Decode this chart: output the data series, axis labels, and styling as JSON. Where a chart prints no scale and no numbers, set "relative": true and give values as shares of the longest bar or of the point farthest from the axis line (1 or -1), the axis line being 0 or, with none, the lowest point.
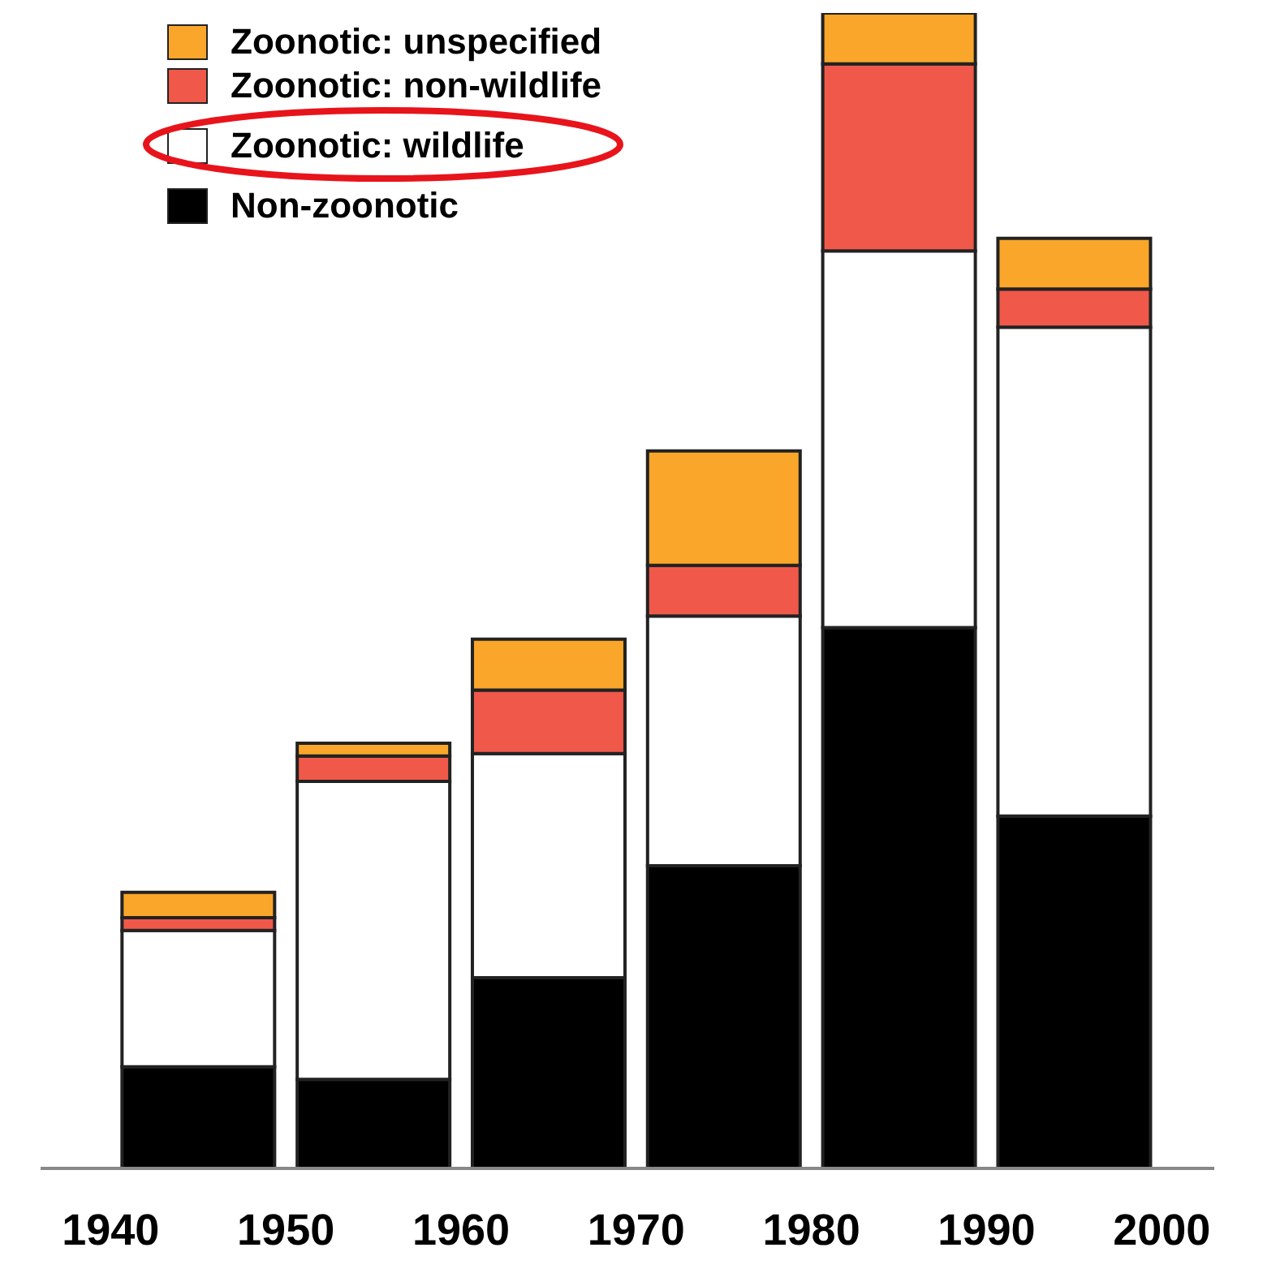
{
  "chart_data": {
    "type": "bar",
    "stacked": true,
    "relative": true,
    "x": [
      1945,
      1955,
      1965,
      1975,
      1985,
      1995
    ],
    "xlim": [
      1936,
      2003
    ],
    "xticks": [
      1940,
      1950,
      1960,
      1970,
      1980,
      1990,
      2000
    ],
    "legend": "top left",
    "grid": false,
    "series": [
      {
        "name": "Non-zoonotic",
        "color": "#000000",
        "values": [
          0.088,
          0.077,
          0.165,
          0.262,
          0.468,
          0.305
        ]
      },
      {
        "name": "Zoonotic: wildlife",
        "color": "#ffffff",
        "values": [
          0.118,
          0.258,
          0.194,
          0.216,
          0.326,
          0.423
        ]
      },
      {
        "name": "Zoonotic: non-wildlife",
        "color": "#f0584a",
        "values": [
          0.011,
          0.022,
          0.055,
          0.044,
          0.162,
          0.033
        ]
      },
      {
        "name": "Zoonotic: unspecified",
        "color": "#f9a62a",
        "values": [
          0.022,
          0.011,
          0.044,
          0.099,
          0.044,
          0.044
        ]
      }
    ]
  }
}
